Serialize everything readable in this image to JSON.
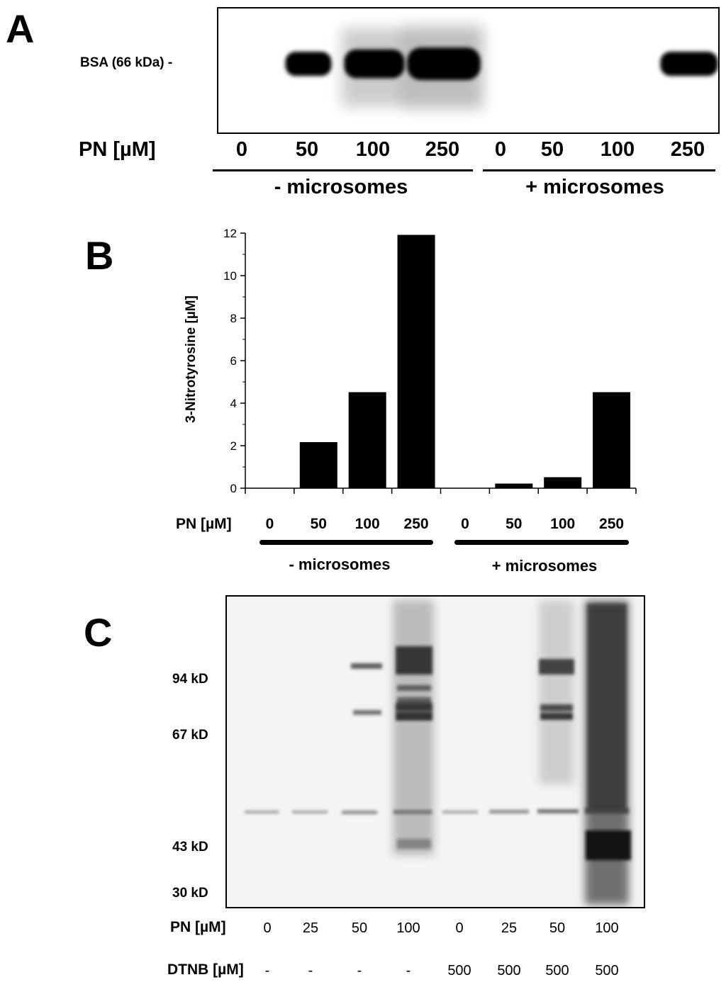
{
  "panel_a": {
    "letter": "A",
    "marker_label": "BSA (66 kDa) -",
    "x_title": "PN [µM]",
    "lanes": [
      "0",
      "50",
      "100",
      "250",
      "0",
      "50",
      "100",
      "250"
    ],
    "band_intensity": [
      0,
      0.55,
      0.8,
      1.0,
      0,
      0,
      0,
      0.55
    ],
    "groups": [
      "- microsomes",
      "+ microsomes"
    ]
  },
  "chart_data": {
    "type": "bar",
    "panel_letter": "B",
    "ylabel": "3-Nitrotyrosine [µM]",
    "xlabel": "PN [µM]",
    "categories": [
      "0",
      "50",
      "100",
      "250",
      "0",
      "50",
      "100",
      "250"
    ],
    "values": [
      0,
      2.15,
      4.5,
      11.9,
      0,
      0.2,
      0.5,
      4.5
    ],
    "groups": [
      "- microsomes",
      "+ microsomes"
    ],
    "ylim": [
      0,
      12
    ],
    "yticks": [
      "0",
      "2",
      "4",
      "6",
      "8",
      "10",
      "12"
    ],
    "grid": false,
    "bar_color": "#000000"
  },
  "panel_c": {
    "letter": "C",
    "markers": [
      "94 kD",
      "67 kD",
      "43 kD",
      "30 kD"
    ],
    "pn_label": "PN [µM]",
    "pn_values": [
      "0",
      "25",
      "50",
      "100",
      "0",
      "25",
      "50",
      "100"
    ],
    "dtnb_label": "DTNB [µM]",
    "dtnb_values": [
      "-",
      "-",
      "-",
      "-",
      "500",
      "500",
      "500",
      "500"
    ]
  }
}
